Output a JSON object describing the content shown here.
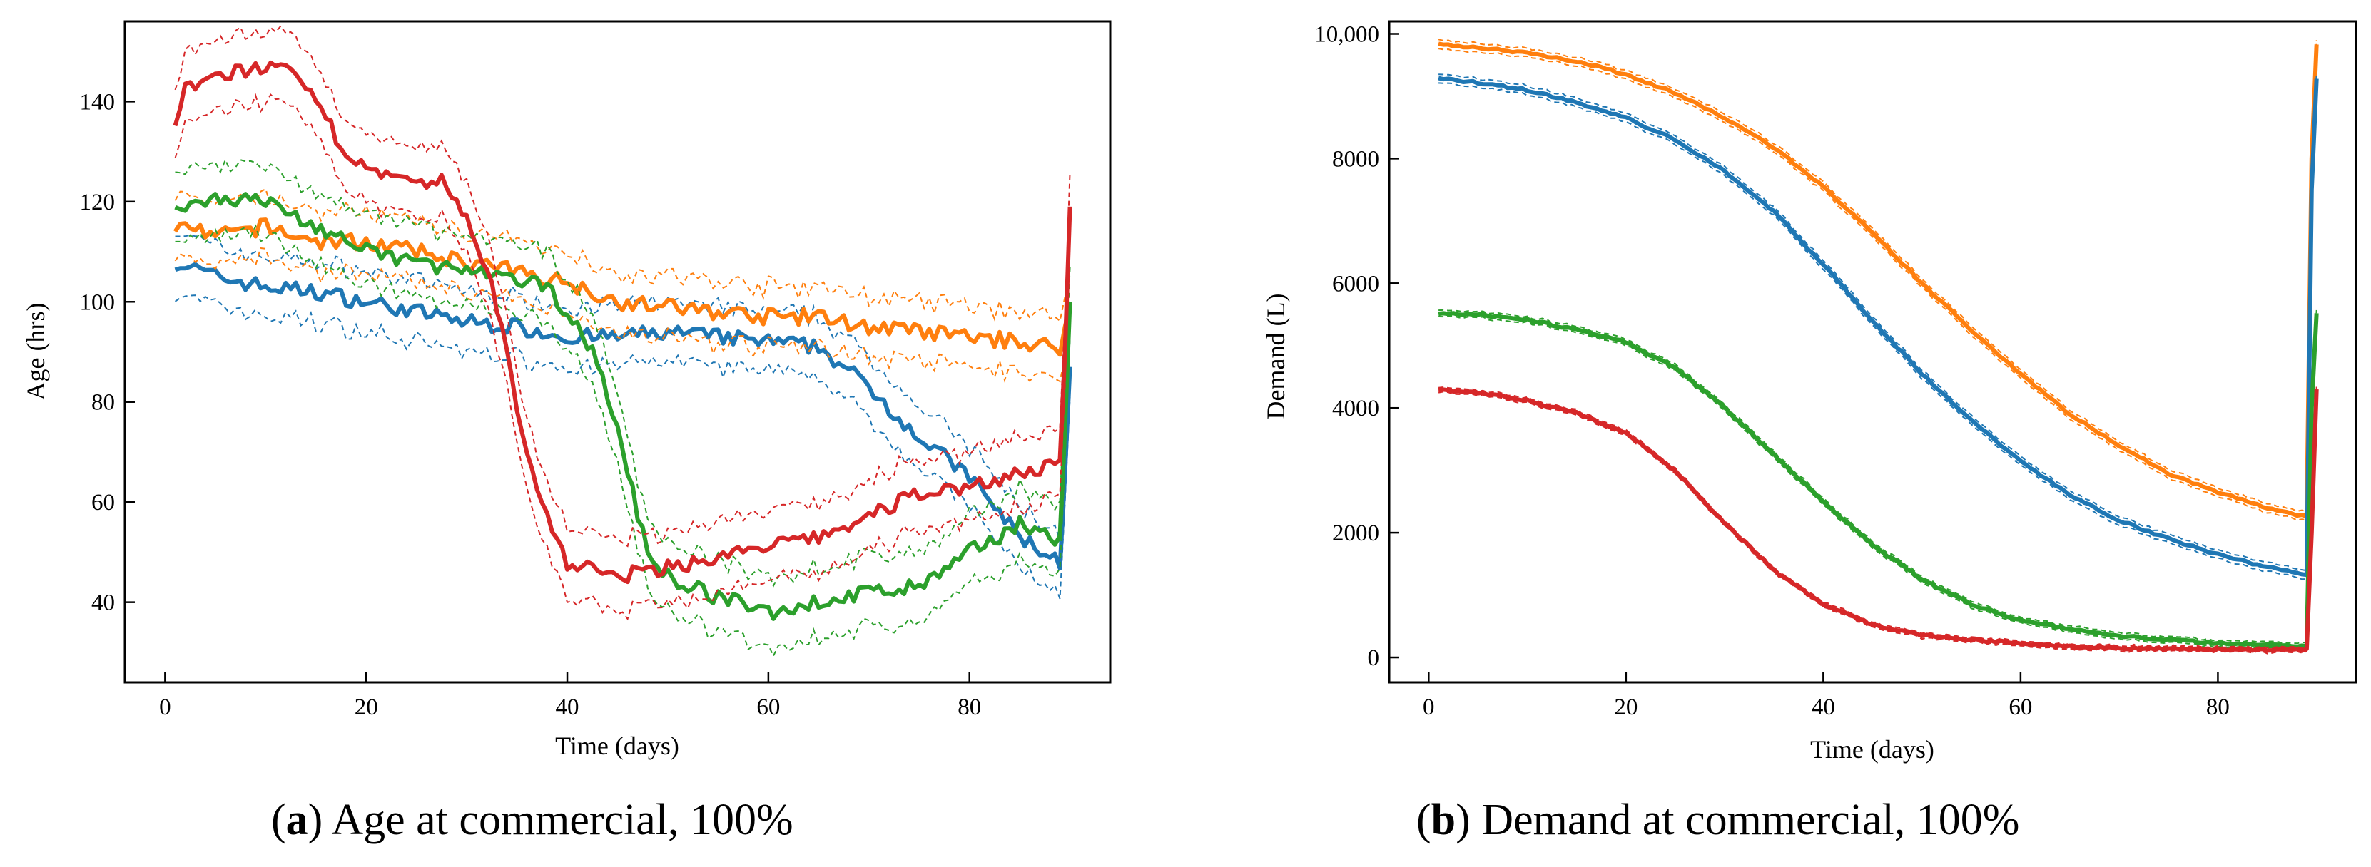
{
  "captions": [
    {
      "letter": "a",
      "text": "Age at commercial, 100%"
    },
    {
      "letter": "b",
      "text": "Demand at commercial, 100%"
    }
  ],
  "chart_data": [
    {
      "type": "line",
      "title": "",
      "xlabel": "Time (days)",
      "ylabel": "Age (hrs)",
      "xlim": [
        -4,
        94
      ],
      "ylim": [
        24,
        156
      ],
      "xticks": [
        0,
        20,
        40,
        60,
        80
      ],
      "yticks": [
        40,
        60,
        80,
        100,
        120,
        140
      ],
      "ytick_labels": [
        "40",
        "60",
        "80",
        "100",
        "120",
        "140"
      ],
      "series": [
        {
          "name": "blue",
          "color": "#1f77b4",
          "x": [
            1,
            5,
            10,
            15,
            20,
            25,
            30,
            35,
            40,
            45,
            50,
            55,
            60,
            65,
            70,
            75,
            80,
            85,
            89,
            89.5,
            90
          ],
          "y": [
            108,
            105,
            103,
            102,
            100,
            98,
            96,
            95,
            93,
            93,
            94,
            93,
            92,
            91,
            83,
            73,
            65,
            53,
            48,
            66,
            87
          ],
          "band": 6
        },
        {
          "name": "orange",
          "color": "#ff7f0e",
          "x": [
            1,
            5,
            10,
            15,
            20,
            25,
            30,
            35,
            40,
            45,
            50,
            55,
            60,
            65,
            70,
            75,
            80,
            85,
            89,
            89.5,
            90
          ],
          "y": [
            115,
            113,
            115,
            112,
            112,
            110,
            108,
            106,
            104,
            100,
            99,
            98,
            97,
            97,
            95,
            94,
            93,
            92,
            91,
            95,
            99
          ],
          "band": 6
        },
        {
          "name": "green",
          "color": "#2ca02c",
          "x": [
            1,
            5,
            10,
            15,
            20,
            25,
            30,
            35,
            38,
            40,
            42,
            44,
            46,
            48,
            50,
            55,
            60,
            65,
            70,
            75,
            78,
            80,
            82,
            85,
            89,
            89.5,
            90
          ],
          "y": [
            118,
            121,
            120,
            115,
            110,
            108,
            106,
            104,
            103,
            98,
            92,
            82,
            66,
            50,
            45,
            41,
            38,
            40,
            42,
            43,
            47,
            50,
            52,
            56,
            52,
            75,
            100
          ],
          "band": 7
        },
        {
          "name": "red",
          "color": "#d62728",
          "x": [
            1,
            2,
            5,
            10,
            12,
            15,
            17,
            20,
            25,
            28,
            30,
            32,
            34,
            35,
            36,
            38,
            40,
            45,
            50,
            55,
            60,
            65,
            70,
            75,
            80,
            85,
            89,
            89.5,
            90
          ],
          "y": [
            136,
            142,
            145,
            147,
            146,
            140,
            133,
            126,
            123,
            124,
            116,
            107,
            90,
            78,
            70,
            57,
            48,
            45,
            47,
            49,
            51,
            53,
            57,
            62,
            63,
            66,
            67,
            90,
            119
          ],
          "band": 7
        }
      ]
    },
    {
      "type": "line",
      "title": "",
      "xlabel": "Time (days)",
      "ylabel": "Demand (L)",
      "xlim": [
        -4,
        94
      ],
      "ylim": [
        -400,
        10200
      ],
      "xticks": [
        0,
        20,
        40,
        60,
        80
      ],
      "yticks": [
        0,
        2000,
        4000,
        6000,
        8000,
        10000
      ],
      "ytick_labels": [
        "0",
        "2000",
        "4000",
        "6000",
        "8000",
        "10,000"
      ],
      "series": [
        {
          "name": "orange",
          "color": "#ff7f0e",
          "x": [
            1,
            5,
            10,
            15,
            20,
            25,
            30,
            35,
            40,
            45,
            50,
            55,
            60,
            65,
            70,
            75,
            80,
            85,
            89,
            89.5,
            90
          ],
          "y": [
            9830,
            9780,
            9700,
            9560,
            9350,
            9050,
            8650,
            8180,
            7550,
            6800,
            6000,
            5250,
            4550,
            3900,
            3400,
            2950,
            2650,
            2400,
            2250,
            8000,
            9830
          ],
          "band": 70
        },
        {
          "name": "blue",
          "color": "#1f77b4",
          "x": [
            1,
            5,
            10,
            15,
            20,
            25,
            30,
            35,
            40,
            45,
            50,
            55,
            60,
            65,
            70,
            75,
            80,
            85,
            89,
            89.5,
            90
          ],
          "y": [
            9280,
            9220,
            9100,
            8900,
            8650,
            8300,
            7800,
            7150,
            6300,
            5400,
            4550,
            3800,
            3150,
            2600,
            2200,
            1900,
            1650,
            1450,
            1330,
            7500,
            9280
          ],
          "band": 70
        },
        {
          "name": "green",
          "color": "#2ca02c",
          "x": [
            1,
            5,
            10,
            15,
            20,
            25,
            30,
            35,
            40,
            45,
            50,
            55,
            60,
            65,
            70,
            75,
            80,
            85,
            89,
            89.5,
            90
          ],
          "y": [
            5520,
            5500,
            5420,
            5250,
            5050,
            4650,
            4000,
            3250,
            2500,
            1800,
            1250,
            850,
            600,
            450,
            350,
            280,
            230,
            200,
            180,
            4000,
            5520
          ],
          "band": 50
        },
        {
          "name": "red",
          "color": "#d62728",
          "x": [
            1,
            5,
            10,
            15,
            20,
            25,
            30,
            35,
            40,
            45,
            50,
            55,
            60,
            65,
            70,
            75,
            80,
            85,
            89,
            89.5,
            90
          ],
          "y": [
            4300,
            4250,
            4120,
            3920,
            3600,
            3000,
            2150,
            1400,
            850,
            520,
            360,
            280,
            230,
            180,
            150,
            140,
            130,
            125,
            120,
            2000,
            4300
          ],
          "band": 40
        }
      ]
    }
  ]
}
